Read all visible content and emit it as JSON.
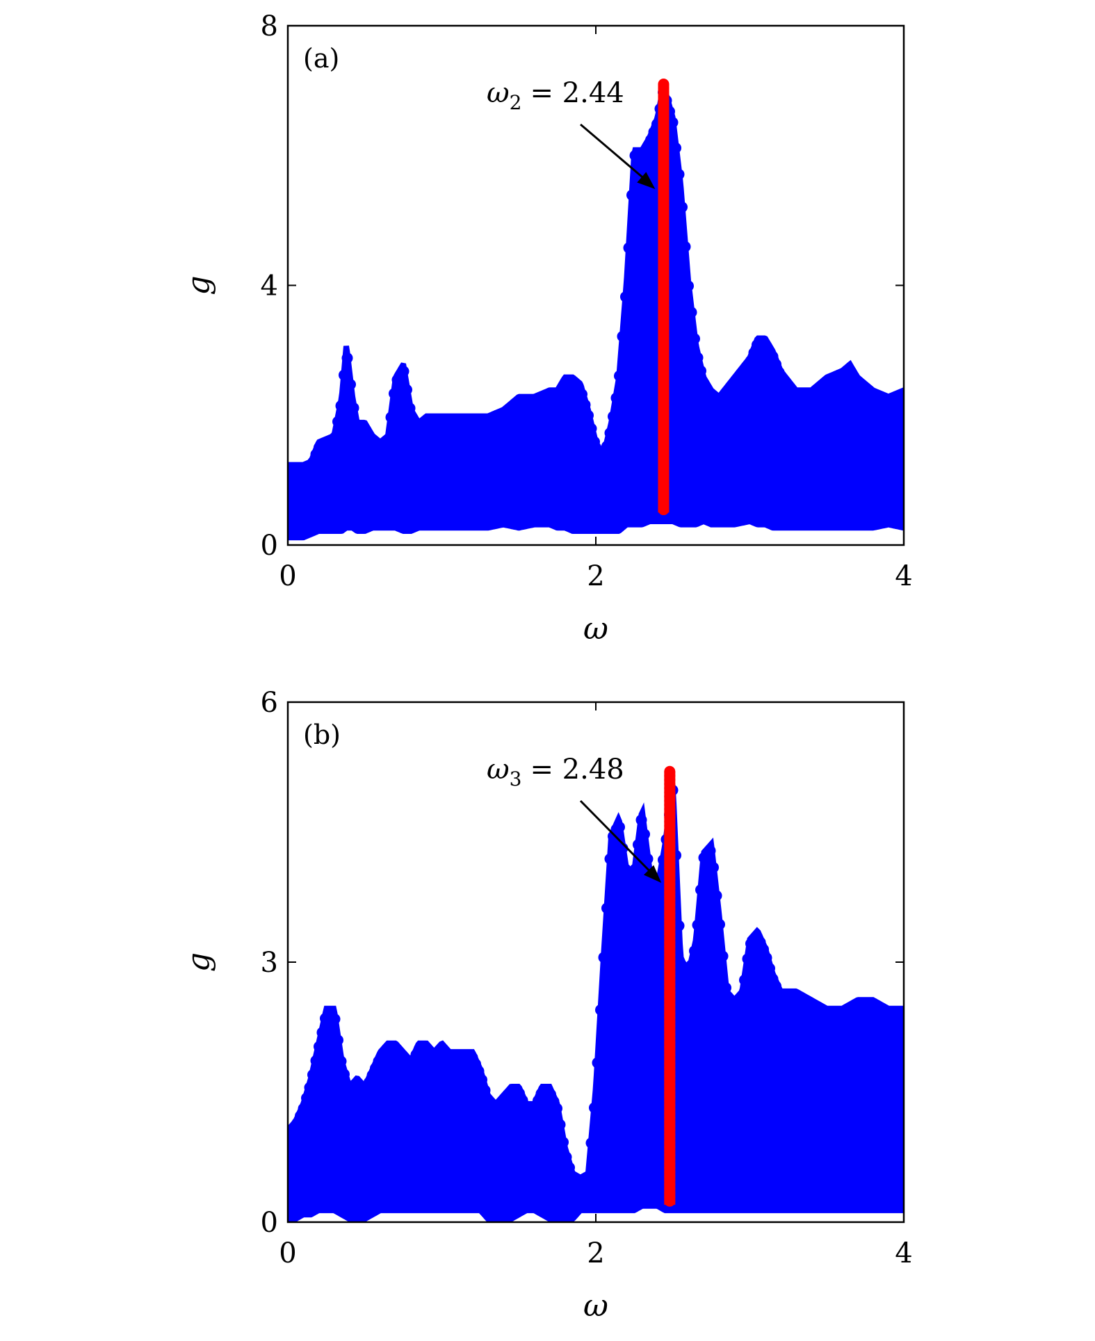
{
  "colors": {
    "envelope": "#0000ff",
    "highlight": "#ff0000",
    "axis": "#000000",
    "background": "#ffffff"
  },
  "chart_data": [
    {
      "type": "scatter",
      "panel": "(a)",
      "xlabel": "ω",
      "ylabel": "g",
      "xlim": [
        0,
        4
      ],
      "ylim": [
        0,
        8
      ],
      "xticks": [
        "0",
        "2",
        "4"
      ],
      "yticks": [
        "0",
        "4",
        "8"
      ],
      "grid": false,
      "annotation": {
        "variable": "ω",
        "subscript": "2",
        "text": "= 2.44",
        "x": 2.44
      },
      "series": [
        {
          "color": "#0000ff",
          "x": [
            0.0,
            0.1,
            0.15,
            0.2,
            0.3,
            0.35,
            0.38,
            0.42,
            0.45,
            0.5,
            0.55,
            0.6,
            0.65,
            0.7,
            0.75,
            0.8,
            0.85,
            0.9,
            1.0,
            1.1,
            1.2,
            1.3,
            1.4,
            1.5,
            1.6,
            1.7,
            1.75,
            1.8,
            1.85,
            1.9,
            1.95,
            2.0,
            2.05,
            2.1,
            2.15,
            2.2,
            2.25,
            2.3,
            2.35,
            2.4,
            2.44,
            2.5,
            2.55,
            2.6,
            2.65,
            2.7,
            2.75,
            2.8,
            2.9,
            3.0,
            3.05,
            3.1,
            3.15,
            3.2,
            3.3,
            3.4,
            3.5,
            3.6,
            3.65,
            3.7,
            3.8,
            3.9,
            4.0
          ],
          "low": [
            0.2,
            0.2,
            0.25,
            0.3,
            0.3,
            0.3,
            0.35,
            0.35,
            0.3,
            0.3,
            0.35,
            0.35,
            0.35,
            0.35,
            0.3,
            0.3,
            0.35,
            0.35,
            0.35,
            0.35,
            0.35,
            0.35,
            0.4,
            0.35,
            0.4,
            0.4,
            0.35,
            0.35,
            0.3,
            0.3,
            0.3,
            0.3,
            0.3,
            0.3,
            0.3,
            0.4,
            0.4,
            0.4,
            0.45,
            0.45,
            0.45,
            0.45,
            0.4,
            0.4,
            0.4,
            0.45,
            0.4,
            0.4,
            0.4,
            0.45,
            0.4,
            0.4,
            0.35,
            0.35,
            0.35,
            0.35,
            0.35,
            0.35,
            0.35,
            0.35,
            0.35,
            0.4,
            0.35
          ],
          "high": [
            1.15,
            1.15,
            1.2,
            1.5,
            1.6,
            2.2,
            3.0,
            2.2,
            1.8,
            1.8,
            1.6,
            1.5,
            1.6,
            2.5,
            2.7,
            2.0,
            1.8,
            1.9,
            1.9,
            1.9,
            1.9,
            1.9,
            2.0,
            2.2,
            2.2,
            2.3,
            2.3,
            2.5,
            2.5,
            2.4,
            2.0,
            1.5,
            1.3,
            1.8,
            2.5,
            4.0,
            6.0,
            6.0,
            6.2,
            6.5,
            7.0,
            6.5,
            5.5,
            4.0,
            3.0,
            2.5,
            2.3,
            2.2,
            2.5,
            2.8,
            3.1,
            3.1,
            2.9,
            2.6,
            2.3,
            2.3,
            2.5,
            2.6,
            2.7,
            2.5,
            2.3,
            2.2,
            2.3
          ]
        },
        {
          "color": "#ff0000",
          "x": [
            2.44
          ],
          "low": [
            0.5
          ],
          "high": [
            7.1
          ]
        }
      ]
    },
    {
      "type": "scatter",
      "panel": "(b)",
      "xlabel": "ω",
      "ylabel": "g",
      "xlim": [
        0,
        4
      ],
      "ylim": [
        0,
        6
      ],
      "xticks": [
        "0",
        "2",
        "4"
      ],
      "yticks": [
        "0",
        "3",
        "6"
      ],
      "grid": false,
      "annotation": {
        "variable": "ω",
        "subscript": "3",
        "text": "= 2.48",
        "x": 2.48
      },
      "series": [
        {
          "color": "#0000ff",
          "x": [
            0.0,
            0.05,
            0.1,
            0.15,
            0.2,
            0.25,
            0.3,
            0.35,
            0.4,
            0.45,
            0.5,
            0.55,
            0.6,
            0.65,
            0.7,
            0.75,
            0.8,
            0.85,
            0.9,
            0.95,
            1.0,
            1.05,
            1.1,
            1.15,
            1.2,
            1.25,
            1.3,
            1.35,
            1.4,
            1.45,
            1.5,
            1.55,
            1.6,
            1.65,
            1.7,
            1.75,
            1.8,
            1.85,
            1.9,
            1.95,
            2.0,
            2.05,
            2.1,
            2.15,
            2.2,
            2.25,
            2.3,
            2.35,
            2.4,
            2.45,
            2.5,
            2.55,
            2.6,
            2.65,
            2.7,
            2.75,
            2.8,
            2.85,
            2.9,
            2.95,
            3.0,
            3.05,
            3.1,
            3.15,
            3.2,
            3.3,
            3.4,
            3.5,
            3.6,
            3.7,
            3.8,
            3.9,
            4.0
          ],
          "low": [
            0.1,
            0.1,
            0.15,
            0.15,
            0.2,
            0.2,
            0.2,
            0.15,
            0.1,
            0.1,
            0.1,
            0.15,
            0.2,
            0.2,
            0.2,
            0.2,
            0.2,
            0.2,
            0.2,
            0.2,
            0.2,
            0.2,
            0.2,
            0.2,
            0.2,
            0.2,
            0.1,
            0.1,
            0.1,
            0.1,
            0.15,
            0.2,
            0.2,
            0.15,
            0.1,
            0.1,
            0.1,
            0.1,
            0.2,
            0.2,
            0.2,
            0.2,
            0.2,
            0.2,
            0.2,
            0.2,
            0.25,
            0.25,
            0.25,
            0.2,
            0.2,
            0.2,
            0.2,
            0.2,
            0.2,
            0.2,
            0.2,
            0.2,
            0.2,
            0.2,
            0.2,
            0.2,
            0.2,
            0.2,
            0.2,
            0.2,
            0.2,
            0.2,
            0.2,
            0.2,
            0.2,
            0.2,
            0.2
          ],
          "high": [
            1.0,
            1.1,
            1.3,
            1.6,
            2.0,
            2.4,
            2.4,
            1.8,
            1.5,
            1.6,
            1.5,
            1.7,
            1.9,
            2.0,
            2.0,
            1.9,
            1.8,
            2.0,
            2.0,
            1.9,
            2.0,
            1.9,
            1.9,
            1.9,
            1.9,
            1.7,
            1.4,
            1.3,
            1.4,
            1.5,
            1.5,
            1.3,
            1.3,
            1.5,
            1.5,
            1.3,
            0.8,
            0.5,
            0.45,
            0.5,
            1.5,
            3.0,
            4.4,
            4.6,
            4.0,
            4.0,
            4.7,
            4.0,
            3.8,
            4.3,
            5.0,
            3.0,
            2.8,
            3.2,
            4.2,
            4.3,
            3.5,
            2.6,
            2.5,
            2.6,
            3.2,
            3.3,
            3.1,
            2.8,
            2.6,
            2.6,
            2.5,
            2.4,
            2.4,
            2.5,
            2.5,
            2.4,
            2.4
          ]
        },
        {
          "color": "#ff0000",
          "x": [
            2.48
          ],
          "low": [
            0.2
          ],
          "high": [
            5.2
          ]
        }
      ]
    }
  ]
}
